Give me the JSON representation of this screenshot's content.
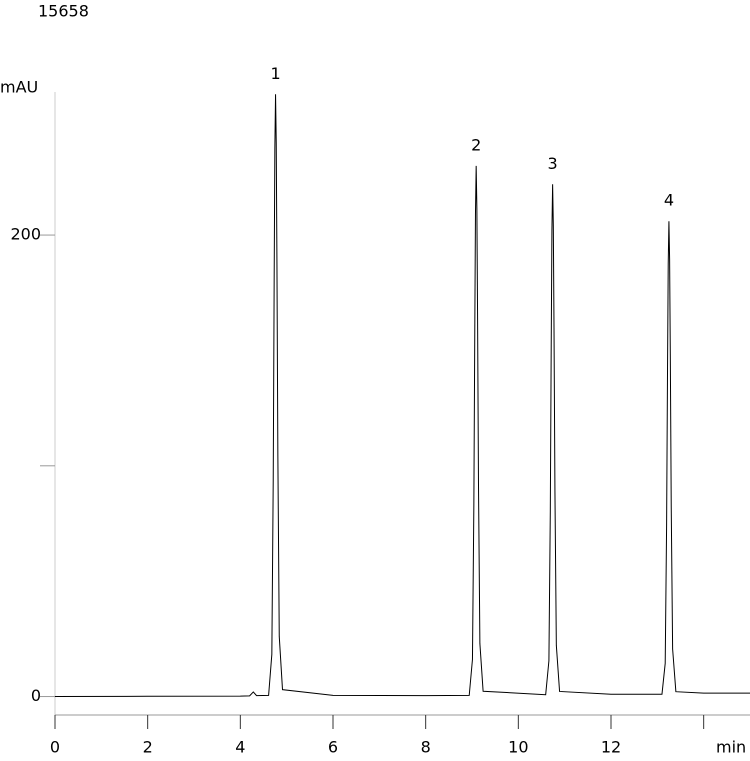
{
  "chart_data": {
    "type": "line",
    "title": "15658",
    "y_label": "mAU",
    "x_label": "min",
    "x": [
      0,
      2,
      4,
      4.2,
      4.28,
      4.35,
      4.61,
      4.68,
      4.71,
      4.73,
      4.745,
      4.76,
      4.775,
      4.79,
      4.81,
      4.84,
      4.91,
      6,
      8,
      8.94,
      9.01,
      9.04,
      9.06,
      9.075,
      9.09,
      9.105,
      9.12,
      9.14,
      9.17,
      9.24,
      10.59,
      10.66,
      10.69,
      10.71,
      10.725,
      10.74,
      10.755,
      10.77,
      10.79,
      10.82,
      10.89,
      12,
      13.1,
      13.17,
      13.2,
      13.22,
      13.235,
      13.25,
      13.265,
      13.28,
      13.3,
      13.33,
      13.4,
      14,
      15
    ],
    "values": [
      0,
      0.1,
      0.2,
      0.3,
      2,
      0.4,
      0.5,
      18.3,
      94,
      180,
      237.5,
      261,
      240,
      188,
      104.4,
      26.1,
      3,
      0.5,
      0.4,
      0.5,
      16.1,
      82.8,
      158.7,
      209.3,
      230,
      211.6,
      165.6,
      92,
      23,
      2.3,
      0.8,
      15.5,
      79.9,
      153.2,
      202,
      222,
      204.2,
      159.8,
      88.8,
      22.2,
      2.2,
      1,
      1,
      14.4,
      74.2,
      142.1,
      187.5,
      206,
      189.5,
      148.3,
      82.4,
      20.6,
      2.1,
      1.5,
      1.5
    ],
    "color": "#000000",
    "annotations": [
      {
        "text": "1",
        "x": 4.76
      },
      {
        "text": "2",
        "x": 9.09
      },
      {
        "text": "3",
        "x": 10.74
      },
      {
        "text": "4",
        "x": 13.25
      }
    ],
    "xlim": [
      0,
      15
    ],
    "xticks": [
      0,
      2,
      4,
      6,
      8,
      10,
      12,
      {
        "value": 14,
        "label": null
      }
    ],
    "ylim": [
      -8,
      262
    ],
    "yticks": [
      0,
      {
        "value": 100,
        "label": null
      },
      200
    ]
  }
}
